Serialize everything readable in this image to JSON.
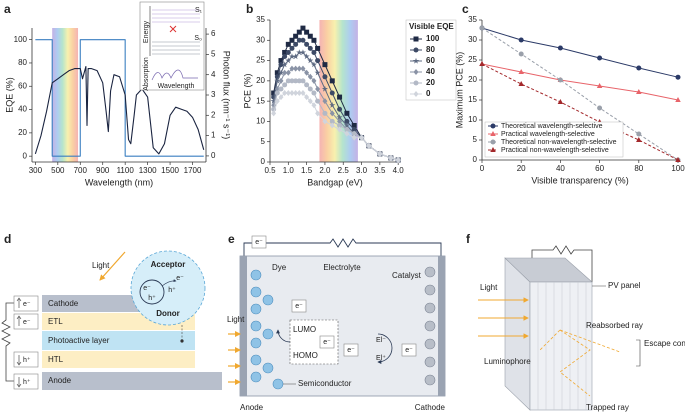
{
  "chart_data": [
    {
      "type": "line",
      "panel_label": "a",
      "xlabel": "Wavelength (nm)",
      "ylabel": "EQE (%)",
      "y2label": "Photon flux (nm⁻¹ s⁻¹)",
      "xlim": [
        270,
        1820
      ],
      "xticks": [
        300,
        500,
        700,
        900,
        1100,
        1300,
        1500,
        1700
      ],
      "ylim": [
        -5,
        110
      ],
      "yticks": [
        0,
        20,
        40,
        60,
        80,
        100
      ],
      "y2lim": [
        -0.3,
        6.3
      ],
      "y2ticks": [
        0,
        1,
        2,
        3,
        4,
        5,
        6
      ],
      "band": [
        450,
        680
      ],
      "series": [
        {
          "color": "#3a7fc1",
          "x": [
            300,
            450,
            450,
            700,
            700,
            1100,
            1100,
            1800
          ],
          "values": [
            100,
            100,
            0,
            0,
            100,
            100,
            0,
            0
          ]
        },
        {
          "color": "#1a2440",
          "axis": "y2",
          "x": [
            300,
            350,
            400,
            450,
            500,
            550,
            600,
            650,
            700,
            720,
            750,
            760,
            770,
            800,
            850,
            900,
            930,
            950,
            970,
            1000,
            1050,
            1100,
            1130,
            1150,
            1180,
            1200,
            1250,
            1300,
            1350,
            1400,
            1450,
            1500,
            1550,
            1600,
            1650,
            1700,
            1750,
            1800
          ],
          "values": [
            0.1,
            1.0,
            2.2,
            3.6,
            3.8,
            4.0,
            4.2,
            4.3,
            4.3,
            3.8,
            4.4,
            1.5,
            4.3,
            4.3,
            4.2,
            3.6,
            2.2,
            1.2,
            3.2,
            4.0,
            3.9,
            3.0,
            0.8,
            0.6,
            2.0,
            3.0,
            3.3,
            2.9,
            0.4,
            0.1,
            0.6,
            2.0,
            2.4,
            2.3,
            2.2,
            1.9,
            1.3,
            0.3
          ]
        }
      ],
      "inset": {
        "energy": "Energy",
        "s1": "S₁",
        "s0": "S₀",
        "absorption": "Absorption",
        "wavelength": "Wavelength"
      }
    },
    {
      "type": "line",
      "panel_label": "b",
      "xlabel": "Bandgap (eV)",
      "ylabel": "PCE (%)",
      "xlim": [
        0.5,
        4.05
      ],
      "xticks": [
        0.5,
        {
          "value": 1,
          "label": "1.0"
        },
        1.5,
        {
          "value": 2,
          "label": "2.0"
        },
        2.5,
        {
          "value": 3,
          "label": "3.0"
        },
        3.5,
        {
          "value": 4,
          "label": "4.0"
        }
      ],
      "ylim": [
        0,
        35
      ],
      "yticks": [
        0,
        5,
        10,
        15,
        20,
        25,
        30,
        35
      ],
      "band": [
        1.85,
        2.9
      ],
      "legend": "right",
      "legend_title": "Visible EQE",
      "x": [
        0.6,
        0.7,
        0.8,
        0.9,
        1.0,
        1.1,
        1.2,
        1.3,
        1.4,
        1.5,
        1.6,
        1.7,
        1.8,
        2.0,
        2.2,
        2.4,
        2.6,
        2.8,
        3.0,
        3.2,
        3.5,
        3.8,
        4.0
      ],
      "series": [
        {
          "name": "100",
          "color": "#1f2a44",
          "marker": "square",
          "values": [
            17,
            22,
            25,
            27,
            29,
            30,
            31,
            32,
            33,
            32,
            31,
            30,
            28,
            24,
            20,
            16,
            12,
            9,
            6,
            4,
            2,
            1,
            0.5
          ]
        },
        {
          "name": "80",
          "color": "#3d4a66",
          "marker": "circle",
          "values": [
            16,
            21,
            24,
            26,
            27,
            28,
            29,
            30,
            30,
            29,
            28,
            27,
            25,
            21,
            17,
            13,
            10,
            8,
            6,
            4,
            2,
            1,
            0.5
          ]
        },
        {
          "name": "60",
          "color": "#5e6a82",
          "marker": "star",
          "values": [
            15,
            20,
            22,
            24,
            25,
            26,
            26,
            27,
            27,
            26,
            25,
            24,
            22,
            18,
            14,
            11,
            9,
            7,
            6,
            4,
            2,
            1,
            0.5
          ]
        },
        {
          "name": "40",
          "color": "#8a93a6",
          "marker": "diamond",
          "values": [
            14,
            18,
            20,
            22,
            22,
            23,
            23,
            23,
            23,
            22,
            21,
            20,
            18,
            15,
            12,
            10,
            8,
            7,
            6,
            4,
            2,
            1,
            0.5
          ]
        },
        {
          "name": "20",
          "color": "#b3b9c6",
          "marker": "circle",
          "values": [
            13,
            17,
            18,
            19,
            20,
            20,
            20,
            20,
            20,
            19,
            18,
            17,
            15,
            12,
            10,
            9,
            8,
            7,
            6,
            4,
            2,
            1,
            0.5
          ]
        },
        {
          "name": "0",
          "color": "#d0d4dc",
          "marker": "diamond",
          "values": [
            12,
            15,
            16,
            17,
            17,
            17,
            17,
            17,
            17,
            16,
            15,
            14,
            12,
            10,
            9,
            8,
            7,
            6,
            6,
            4,
            2,
            1,
            0.5
          ]
        }
      ]
    },
    {
      "type": "line",
      "panel_label": "c",
      "xlabel": "Visible transparency (%)",
      "ylabel": "Maximum PCE (%)",
      "xlim": [
        0,
        100
      ],
      "xticks": [
        0,
        20,
        40,
        60,
        80,
        100
      ],
      "ylim": [
        0,
        35
      ],
      "yticks": [
        0,
        5,
        10,
        15,
        20,
        25,
        30,
        35
      ],
      "legend": "lower left",
      "x": [
        0,
        20,
        40,
        60,
        80,
        100
      ],
      "series": [
        {
          "name": "Theoretical wavelength-selective",
          "color": "#2b3a67",
          "marker": "circle",
          "values": [
            33,
            30,
            28,
            25.5,
            23,
            20.7
          ]
        },
        {
          "name": "Practical wavelength-selective",
          "color": "#e8646a",
          "marker": "triangle",
          "values": [
            24,
            22,
            20,
            18.5,
            17,
            15
          ]
        },
        {
          "name": "Theoretical non-wavelength-selective",
          "color": "#9aa0aa",
          "marker": "circle",
          "dash": true,
          "values": [
            33,
            26.5,
            20,
            13,
            6.5,
            0
          ]
        },
        {
          "name": "Practical non-wavelength-selective",
          "color": "#a3282b",
          "marker": "triangle",
          "dash": true,
          "values": [
            24,
            19,
            14.5,
            9.5,
            5,
            0
          ]
        }
      ]
    }
  ],
  "diagrams": {
    "d": {
      "panel_label": "d",
      "light": "Light",
      "acceptor": "Acceptor",
      "donor": "Donor",
      "electron": "e⁻",
      "hole": "h⁺",
      "layers": [
        "Cathode",
        "ETL",
        "Photoactive layer",
        "HTL",
        "Anode"
      ]
    },
    "e": {
      "panel_label": "e",
      "electron": "e⁻",
      "electrolyte": "Electrolyte",
      "dye": "Dye",
      "catalyst": "Catalyst",
      "light": "Light",
      "lumo": "LUMO",
      "homo": "HOMO",
      "el_minus": "El⁻",
      "el_plus": "El⁺",
      "semiconductor": "Semiconductor",
      "anode": "Anode",
      "cathode": "Cathode"
    },
    "f": {
      "panel_label": "f",
      "light": "Light",
      "pv_panel": "PV panel",
      "reabsorbed": "Reabsorbed ray",
      "escape": "Escape cone loss",
      "luminophore": "Luminophore",
      "trapped": "Trapped ray"
    }
  }
}
